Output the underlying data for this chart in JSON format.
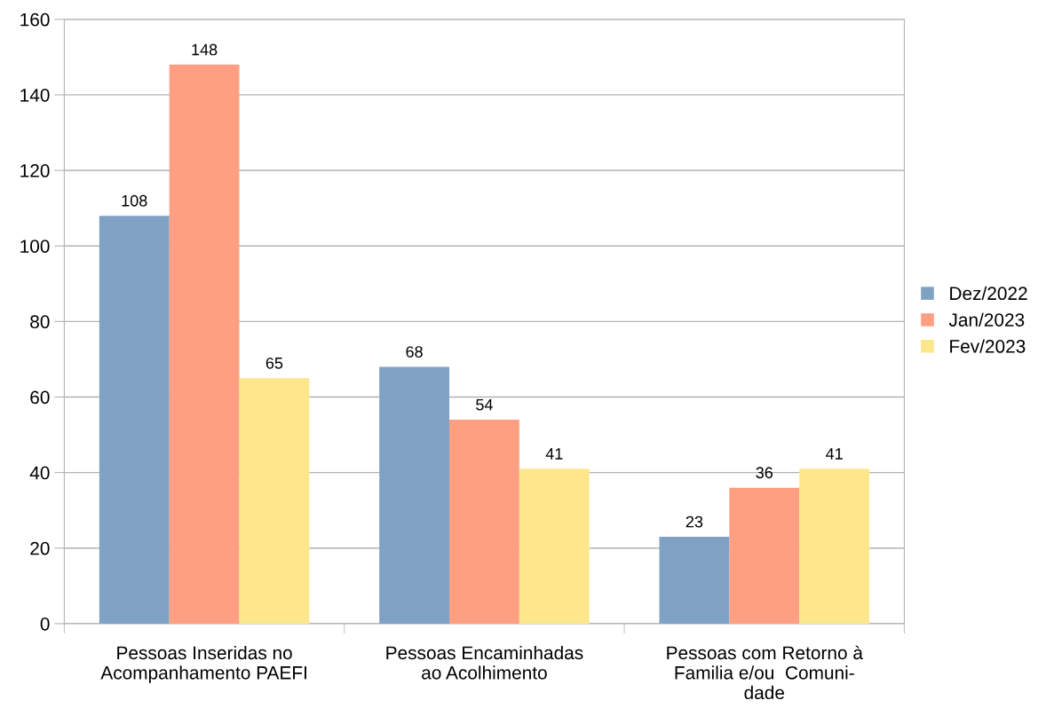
{
  "chart_data": {
    "type": "bar",
    "categories": [
      "Pessoas Inseridas no\nAcompanhamento PAEFI",
      "Pessoas Encaminhadas\nao Acolhimento",
      "Pessoas com Retorno à\nFamilia e/ou  Comuni-\ndade"
    ],
    "series": [
      {
        "name": "Dez/2022",
        "color": "#7fa1c3",
        "values": [
          108,
          68,
          23
        ]
      },
      {
        "name": "Jan/2023",
        "color": "#ff9f82",
        "values": [
          148,
          54,
          36
        ]
      },
      {
        "name": "Fev/2023",
        "color": "#fde68c",
        "values": [
          65,
          41,
          41
        ]
      }
    ],
    "ylim": [
      0,
      160
    ],
    "yticks": [
      0,
      20,
      40,
      60,
      80,
      100,
      120,
      140,
      160
    ],
    "grid": "y",
    "legend": "right",
    "data_labels": true
  }
}
